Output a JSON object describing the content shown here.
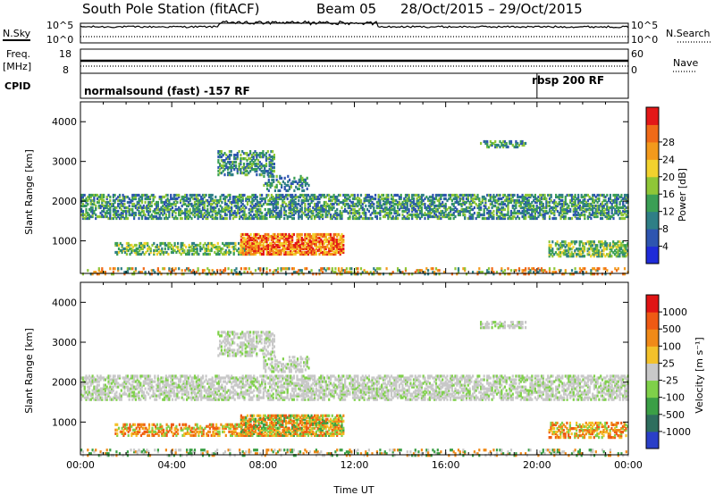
{
  "header": {
    "station": "South Pole Station (fitACF)",
    "beam": "Beam 05",
    "date_range": "28/Oct/2015 – 29/Oct/2015"
  },
  "top_panels": {
    "nsky": {
      "label": "N.Sky",
      "tick_top": "10^5",
      "tick_bottom": "10^0",
      "right_tick_top": "10^5",
      "right_tick_bottom": "10^0",
      "right_label": "N.Search"
    },
    "freq": {
      "label_line1": "Freq.",
      "label_line2": "[MHz]",
      "tick_top": "18",
      "tick_bottom": "8",
      "right_tick_top": "60",
      "right_tick_bottom": "0",
      "right_label": "Nave"
    },
    "cpid": {
      "label": "CPID",
      "segment_1": "normalsound (fast) -157 RF",
      "segment_2": "rbsp 200 RF",
      "switch_hour": 20.0
    }
  },
  "chart_data": [
    {
      "type": "heatmap",
      "name": "power",
      "ylabel": "Slant Range [km]",
      "xlabel": "",
      "xlim": [
        0,
        24
      ],
      "ylim": [
        180,
        4500
      ],
      "yticks": [
        "1000",
        "2000",
        "3000",
        "4000"
      ],
      "colorbar": {
        "label": "Power [dB]",
        "ticks": [
          "4",
          "8",
          "12",
          "16",
          "20",
          "24",
          "28"
        ],
        "colors": [
          "#1f2bd9",
          "#2e55b0",
          "#2f7f86",
          "#3b9f55",
          "#8fc637",
          "#f2d22e",
          "#f39a1c",
          "#f06a18",
          "#e31818"
        ]
      }
    },
    {
      "type": "heatmap",
      "name": "velocity",
      "ylabel": "Slant Range [km]",
      "xlabel": "Time UT",
      "xlim": [
        0,
        24
      ],
      "ylim": [
        180,
        4500
      ],
      "yticks": [
        "1000",
        "2000",
        "3000",
        "4000"
      ],
      "xticks": [
        "00:00",
        "04:00",
        "08:00",
        "12:00",
        "16:00",
        "20:00",
        "00:00"
      ],
      "colorbar": {
        "label": "Velocity [m s⁻¹]",
        "ticks": [
          "1000",
          "500",
          "100",
          "25",
          "-25",
          "-100",
          "-500",
          "-1000"
        ],
        "colors": [
          "#2a3fc8",
          "#2e6e5e",
          "#3b9f46",
          "#7fd04a",
          "#c8c8c8",
          "#f3c12a",
          "#f08a18",
          "#ee5a14",
          "#e01414"
        ]
      }
    }
  ]
}
